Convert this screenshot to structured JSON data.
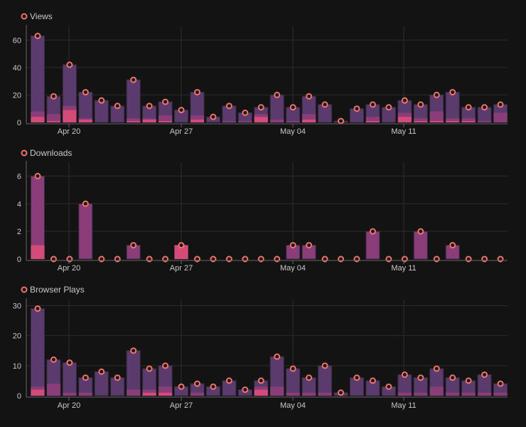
{
  "colors": {
    "background": "#131313",
    "grid": "#2c2c2c",
    "axis": "#666666",
    "text": "#c8c8c8",
    "bar_total": "#5b3b6e",
    "bar_mid": "#8a3d79",
    "bar_low": "#d44a78",
    "marker": "#f0736c"
  },
  "charts": [
    {
      "title": "Views",
      "chart_data": {
        "type": "bar",
        "ylim": [
          0,
          70
        ],
        "yticks": [
          0,
          20,
          40,
          60
        ],
        "xticks": [
          "Apr 20",
          "Apr 27",
          "May 04",
          "May 11"
        ],
        "series": [
          {
            "values": [
              63,
              19,
              42,
              22,
              16,
              12,
              31,
              12,
              15,
              9,
              22,
              4,
              12,
              7,
              11,
              20,
              11,
              19,
              13,
              1,
              10,
              13,
              11,
              16,
              13,
              20,
              22,
              11,
              11,
              13
            ]
          },
          {
            "values": [
              8,
              6,
              12,
              3,
              0,
              0,
              3,
              3,
              5,
              0,
              5,
              0,
              1,
              1,
              6,
              2,
              1,
              6,
              0,
              0,
              0,
              4,
              0,
              7,
              3,
              8,
              3,
              3,
              1,
              7
            ]
          },
          {
            "values": [
              4,
              1,
              9,
              2,
              0,
              0,
              1,
              2,
              1,
              0,
              2,
              0,
              0,
              0,
              4,
              0,
              0,
              2,
              0,
              0,
              0,
              1,
              0,
              4,
              1,
              1,
              1,
              1,
              0,
              0
            ]
          }
        ]
      }
    },
    {
      "title": "Downloads",
      "chart_data": {
        "type": "bar",
        "ylim": [
          0,
          7
        ],
        "yticks": [
          0,
          2,
          4,
          6
        ],
        "xticks": [
          "Apr 20",
          "Apr 27",
          "May 04",
          "May 11"
        ],
        "series": [
          {
            "values": [
              6,
              0,
              0,
              4,
              0,
              0,
              1,
              0,
              0,
              1,
              0,
              0,
              0,
              0,
              0,
              0,
              1,
              1,
              0,
              0,
              0,
              2,
              0,
              0,
              2,
              0,
              1,
              0,
              0,
              0
            ]
          },
          {
            "values": [
              6,
              0,
              0,
              4,
              0,
              0,
              1,
              0,
              0,
              1,
              0,
              0,
              0,
              0,
              0,
              0,
              1,
              1,
              0,
              0,
              0,
              2,
              0,
              0,
              2,
              0,
              1,
              0,
              0,
              0
            ]
          },
          {
            "values": [
              1,
              0,
              0,
              0,
              0,
              0,
              0,
              0,
              0,
              1,
              0,
              0,
              0,
              0,
              0,
              0,
              0,
              0,
              0,
              0,
              0,
              0,
              0,
              0,
              0,
              0,
              0,
              0,
              0,
              0
            ]
          }
        ]
      }
    },
    {
      "title": "Browser Plays",
      "chart_data": {
        "type": "bar",
        "ylim": [
          0,
          32
        ],
        "yticks": [
          0,
          10,
          20,
          30
        ],
        "xticks": [
          "Apr 20",
          "Apr 27",
          "May 04",
          "May 11"
        ],
        "series": [
          {
            "values": [
              29,
              12,
              11,
              6,
              8,
              6,
              15,
              9,
              10,
              3,
              4,
              3,
              5,
              2,
              5,
              13,
              9,
              6,
              10,
              1,
              6,
              5,
              3,
              7,
              6,
              9,
              6,
              5,
              7,
              4
            ]
          },
          {
            "values": [
              3,
              4,
              1,
              1,
              0,
              0,
              2,
              2,
              3,
              0,
              1,
              0,
              0,
              0,
              3,
              3,
              1,
              1,
              1,
              0,
              0,
              0,
              0,
              1,
              1,
              3,
              1,
              1,
              1,
              1
            ]
          },
          {
            "values": [
              2,
              0,
              0,
              0,
              0,
              0,
              0,
              1,
              1,
              0,
              0,
              0,
              0,
              0,
              2,
              0,
              0,
              0,
              0,
              0,
              0,
              0,
              0,
              0,
              0,
              0,
              0,
              0,
              0,
              0
            ]
          }
        ]
      }
    }
  ]
}
